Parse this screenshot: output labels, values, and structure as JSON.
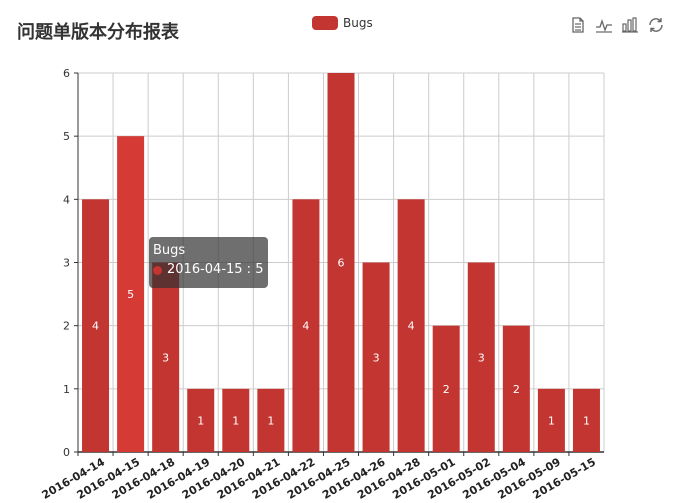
{
  "title": "问题单版本分布报表",
  "legend": {
    "items": [
      {
        "name": "Bugs"
      }
    ]
  },
  "toolbox": {
    "icons": [
      "data-view-icon",
      "line-chart-icon",
      "bar-chart-icon",
      "restore-icon"
    ]
  },
  "colors": {
    "bar": "#c23531",
    "bar_highlight": "#d53a35",
    "axis": "#333333",
    "grid": "#cccccc",
    "label": "#ffffff"
  },
  "tooltip": {
    "series": "Bugs",
    "category": "2016-04-15",
    "value": 5,
    "text": "2016-04-15 : 5"
  },
  "chart_data": {
    "type": "bar",
    "title": "问题单版本分布报表",
    "categories": [
      "2016-04-14",
      "2016-04-15",
      "2016-04-18",
      "2016-04-19",
      "2016-04-20",
      "2016-04-21",
      "2016-04-22",
      "2016-04-25",
      "2016-04-26",
      "2016-04-28",
      "2016-05-01",
      "2016-05-02",
      "2016-05-04",
      "2016-05-09",
      "2016-05-15"
    ],
    "series": [
      {
        "name": "Bugs",
        "values": [
          4,
          5,
          3,
          1,
          1,
          1,
          4,
          6,
          3,
          4,
          2,
          3,
          2,
          1,
          1
        ]
      }
    ],
    "ylim": [
      0,
      6
    ],
    "yticks": [
      0,
      1,
      2,
      3,
      4,
      5,
      6
    ],
    "grid": true,
    "legend_position": "top-center",
    "highlighted_category": "2016-04-15"
  }
}
